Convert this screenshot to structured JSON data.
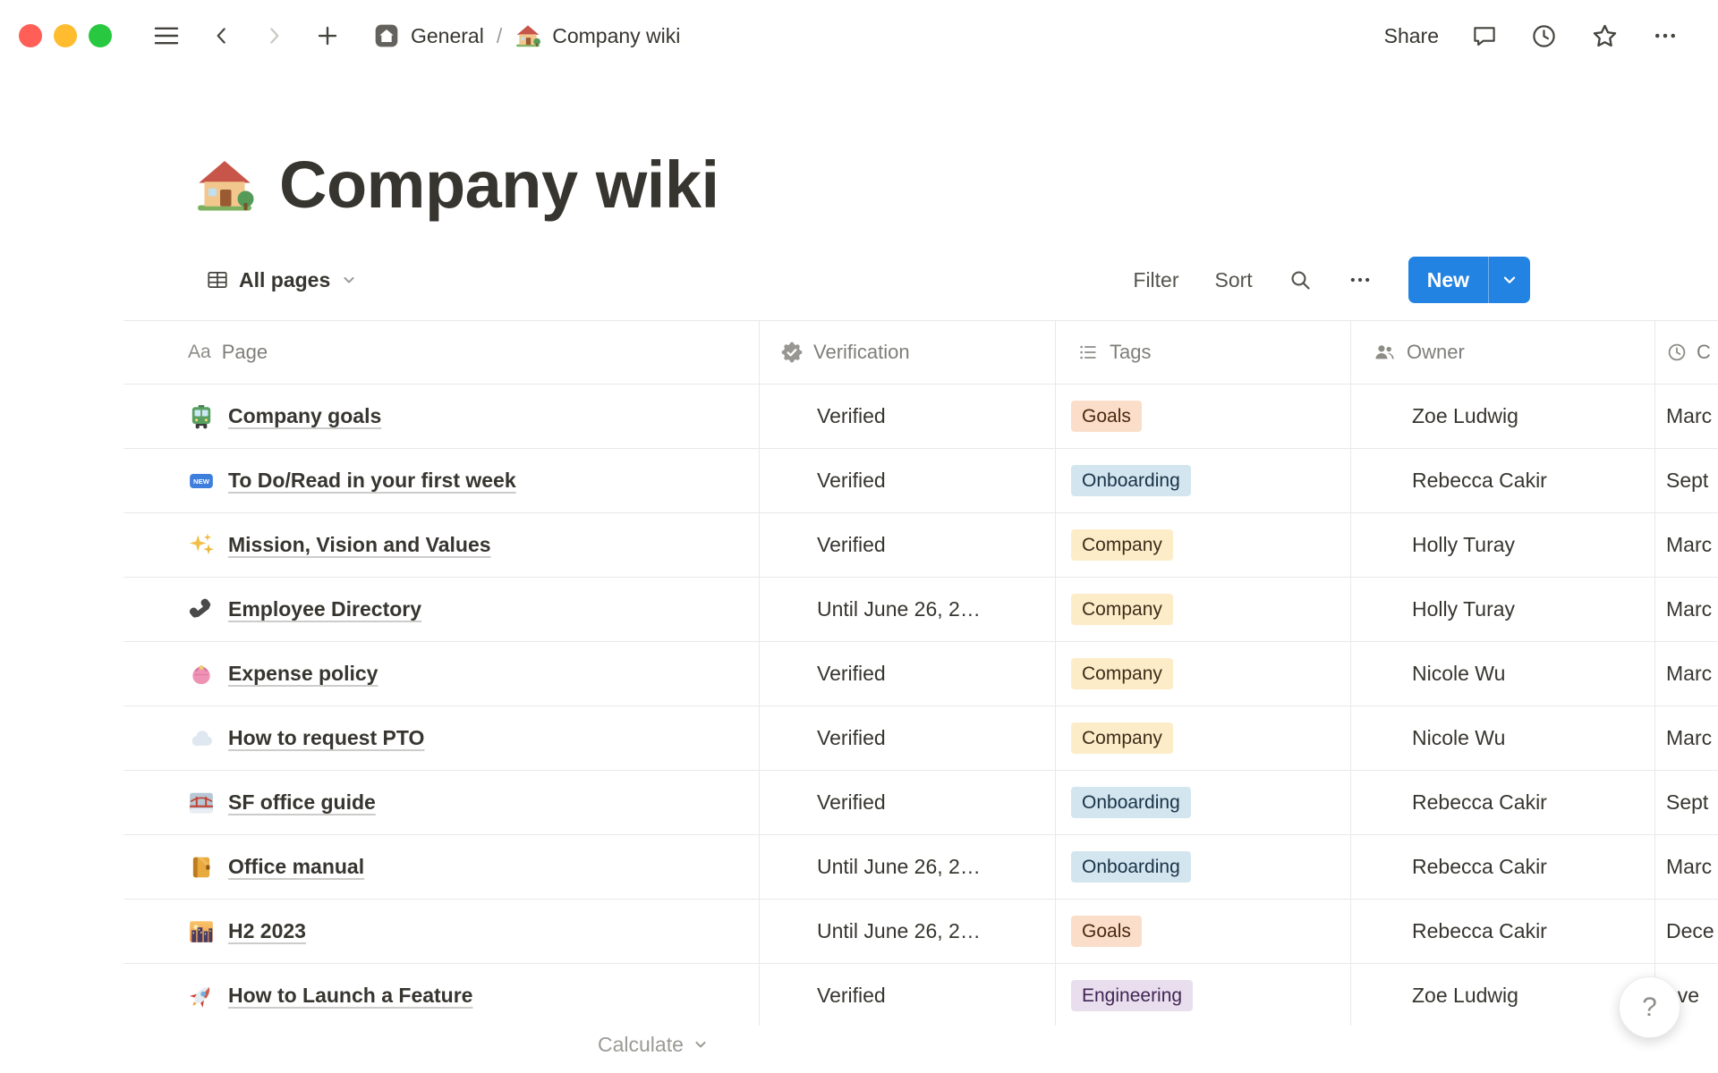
{
  "colors": {
    "accent_blue": "#2383e2",
    "text": "#37352f",
    "secondary_text": "#787774",
    "border": "#e9e9e7",
    "traffic_lights": [
      "#ff5f57",
      "#febc2e",
      "#28c840"
    ],
    "tags": {
      "orange": {
        "bg": "#fadec9",
        "text": "#49290e"
      },
      "blue": {
        "bg": "#d3e5ef",
        "text": "#183347"
      },
      "yellow": {
        "bg": "#fdecc8",
        "text": "#402c1b"
      },
      "purple": {
        "bg": "#e8deee",
        "text": "#412454"
      }
    }
  },
  "topbar": {
    "breadcrumb": {
      "workspace_icon": "home-icon",
      "workspace_label": "General",
      "separator": "/",
      "page_icon": "house-icon",
      "page_label": "Company wiki"
    },
    "share_label": "Share",
    "icons": [
      "chat-icon",
      "history-clock-icon",
      "star-icon",
      "more-options-icon"
    ]
  },
  "page": {
    "icon": "house-icon",
    "title": "Company wiki"
  },
  "view_bar": {
    "view_icon": "table-view-icon",
    "view_label": "All pages",
    "filter_label": "Filter",
    "sort_label": "Sort",
    "search_icon": "search-icon",
    "more_icon": "more-options-icon",
    "new_label": "New"
  },
  "table": {
    "headers": {
      "page": {
        "icon_text": "Aa",
        "label": "Page"
      },
      "verification": {
        "icon": "verified-badge-gray-icon",
        "label": "Verification"
      },
      "tags": {
        "icon": "bulleted-list-icon",
        "label": "Tags"
      },
      "owner": {
        "icon": "people-icon",
        "label": "Owner"
      },
      "created": {
        "icon": "clock-gray-icon",
        "label": "C"
      }
    },
    "rows": [
      {
        "icon": "tram-icon",
        "page": "Company goals",
        "verification": "Verified",
        "tag": "Goals",
        "tag_color": "orange",
        "owner": "Zoe Ludwig",
        "created": "Marc"
      },
      {
        "icon": "new-badge-icon",
        "page": "To Do/Read in your first week",
        "verification": "Verified",
        "tag": "Onboarding",
        "tag_color": "blue",
        "owner": "Rebecca Cakir",
        "created": "Sept"
      },
      {
        "icon": "sparkles-icon",
        "page": "Mission, Vision and Values",
        "verification": "Verified",
        "tag": "Company",
        "tag_color": "yellow",
        "owner": "Holly Turay",
        "created": "Marc"
      },
      {
        "icon": "phone-icon",
        "page": "Employee Directory",
        "verification": "Until June 26, 2…",
        "tag": "Company",
        "tag_color": "yellow",
        "owner": "Holly Turay",
        "created": "Marc"
      },
      {
        "icon": "purse-icon",
        "page": "Expense policy",
        "verification": "Verified",
        "tag": "Company",
        "tag_color": "yellow",
        "owner": "Nicole Wu",
        "created": "Marc"
      },
      {
        "icon": "cloud-icon",
        "page": "How to request PTO",
        "verification": "Verified",
        "tag": "Company",
        "tag_color": "yellow",
        "owner": "Nicole Wu",
        "created": "Marc"
      },
      {
        "icon": "golden-gate-icon",
        "page": "SF office guide",
        "verification": "Verified",
        "tag": "Onboarding",
        "tag_color": "blue",
        "owner": "Rebecca Cakir",
        "created": "Sept"
      },
      {
        "icon": "notebook-icon",
        "page": "Office manual",
        "verification": "Until June 26, 2…",
        "tag": "Onboarding",
        "tag_color": "blue",
        "owner": "Rebecca Cakir",
        "created": "Marc"
      },
      {
        "icon": "cityscape-icon",
        "page": "H2 2023",
        "verification": "Until June 26, 2…",
        "tag": "Goals",
        "tag_color": "orange",
        "owner": "Rebecca Cakir",
        "created": "Dece"
      },
      {
        "icon": "rocket-icon",
        "page": "How to Launch a Feature",
        "verification": "Verified",
        "tag": "Engineering",
        "tag_color": "purple",
        "owner": "Zoe Ludwig",
        "created": "ove"
      }
    ]
  },
  "footer": {
    "calculate_label": "Calculate",
    "help_label": "?"
  }
}
